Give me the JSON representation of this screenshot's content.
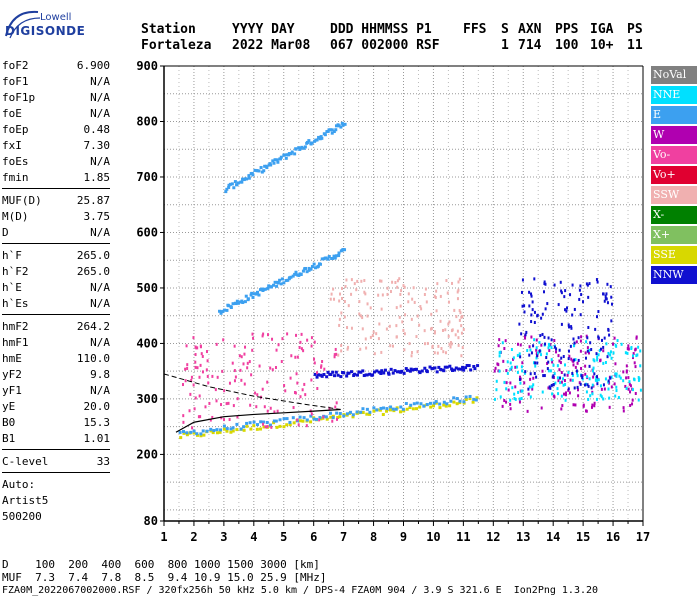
{
  "logo": {
    "top": "Lowell",
    "main": "DIGISONDE"
  },
  "header": {
    "labels": [
      "Station",
      "YYYY DAY",
      "DDD HHMMSS P1",
      "FFS",
      "S",
      "AXN",
      "PPS",
      "IGA",
      "PS"
    ],
    "values": [
      "Fortaleza",
      "2022 Mar08",
      "067 002000 RSF",
      "",
      "1",
      "714",
      "100",
      "10+",
      "11"
    ]
  },
  "scaled": [
    {
      "name": "foF2",
      "value": "6.900"
    },
    {
      "name": "foF1",
      "value": "N/A"
    },
    {
      "name": "foF1p",
      "value": "N/A"
    },
    {
      "name": "foE",
      "value": "N/A"
    },
    {
      "name": "foEp",
      "value": "0.48"
    },
    {
      "name": "fxI",
      "value": "7.30"
    },
    {
      "name": "foEs",
      "value": "N/A"
    },
    {
      "name": "fmin",
      "value": "1.85"
    }
  ],
  "scaled2": [
    {
      "name": "MUF(D)",
      "value": "25.87"
    },
    {
      "name": "M(D)",
      "value": "3.75"
    },
    {
      "name": "D",
      "value": "N/A"
    }
  ],
  "scaled3": [
    {
      "name": "h`F",
      "value": "265.0"
    },
    {
      "name": "h`F2",
      "value": "265.0"
    },
    {
      "name": "h`E",
      "value": "N/A"
    },
    {
      "name": "h`Es",
      "value": "N/A"
    }
  ],
  "scaled4": [
    {
      "name": "hmF2",
      "value": "264.2"
    },
    {
      "name": "hmF1",
      "value": "N/A"
    },
    {
      "name": "hmE",
      "value": "110.0"
    },
    {
      "name": "yF2",
      "value": "9.8"
    },
    {
      "name": "yF1",
      "value": "N/A"
    },
    {
      "name": "yE",
      "value": "20.0"
    },
    {
      "name": "B0",
      "value": "15.3"
    },
    {
      "name": "B1",
      "value": "1.01"
    }
  ],
  "clevel": {
    "name": "C-level",
    "value": "33"
  },
  "auto": [
    "Auto:",
    "Artist5",
    "500200"
  ],
  "legend": [
    {
      "label": "NoVal",
      "color": "#808080"
    },
    {
      "label": "NNE",
      "color": "#00e0ff"
    },
    {
      "label": "E",
      "color": "#3ca0f0"
    },
    {
      "label": "W",
      "color": "#b000b0"
    },
    {
      "label": "Vo-",
      "color": "#f040a0"
    },
    {
      "label": "Vo+",
      "color": "#e00030"
    },
    {
      "label": "SSW",
      "color": "#f0b0b0"
    },
    {
      "label": "X-",
      "color": "#008000"
    },
    {
      "label": "X+",
      "color": "#80c060"
    },
    {
      "label": "SSE",
      "color": "#d8d800"
    },
    {
      "label": "NNW",
      "color": "#1010d0"
    }
  ],
  "footer": {
    "d_row": "D    100  200  400  600  800 1000 1500 3000 [km]",
    "muf_row": "MUF  7.3  7.4  7.8  8.5  9.4 10.9 15.0 25.9 [MHz]",
    "info": "FZA0M_2022067002000.RSF / 320fx256h 50 kHz 5.0 km / DPS-4 FZA0M 904 / 3.9 S 321.6 E  Ion2Png 1.3.20"
  },
  "chart_data": {
    "type": "scatter",
    "xlim": [
      1,
      17
    ],
    "ylim": [
      80,
      900
    ],
    "x_ticks": [
      1,
      2,
      3,
      4,
      5,
      6,
      7,
      8,
      9,
      10,
      11,
      12,
      13,
      14,
      15,
      16,
      17
    ],
    "y_ticks": [
      80,
      200,
      300,
      400,
      500,
      600,
      700,
      800,
      900
    ],
    "xlabel": "",
    "ylabel": "",
    "grid": true,
    "profile_line": {
      "x": [
        1.4,
        2,
        3,
        4,
        5,
        6,
        6.9
      ],
      "y": [
        240,
        258,
        268,
        272,
        275,
        278,
        281
      ]
    },
    "dashed_line": {
      "x": [
        1.0,
        2.5,
        4,
        5.5,
        6.9
      ],
      "y": [
        345,
        322,
        305,
        292,
        281
      ]
    },
    "traces": [
      {
        "series": "SSE",
        "x0": 1.5,
        "x1": 11.4,
        "y0": 235,
        "y1": 300
      },
      {
        "series": "E",
        "x0": 1.5,
        "x1": 11.4,
        "y0": 240,
        "y1": 305
      },
      {
        "series": "E",
        "x0": 2.8,
        "x1": 7.0,
        "y0": 460,
        "y1": 570
      },
      {
        "series": "E",
        "x0": 3.0,
        "x1": 7.0,
        "y0": 680,
        "y1": 800
      },
      {
        "series": "NNW",
        "x0": 6.0,
        "x1": 11.4,
        "y0": 345,
        "y1": 360
      }
    ],
    "clusters": [
      {
        "series": "W",
        "x0": 12.0,
        "x1": 16.9,
        "y0": 280,
        "y1": 420
      },
      {
        "series": "NNE",
        "x0": 12.0,
        "x1": 16.9,
        "y0": 300,
        "y1": 410
      },
      {
        "series": "NNW",
        "x0": 12.8,
        "x1": 16.0,
        "y0": 320,
        "y1": 520
      },
      {
        "series": "Vo-",
        "x0": 1.6,
        "x1": 6.8,
        "y0": 250,
        "y1": 420
      },
      {
        "series": "SSW",
        "x0": 6.5,
        "x1": 11.0,
        "y0": 380,
        "y1": 520
      }
    ]
  }
}
